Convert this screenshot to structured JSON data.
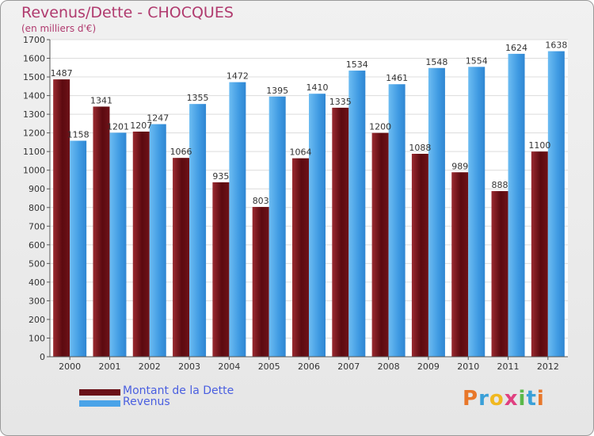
{
  "chart_data": {
    "type": "bar",
    "title": "Revenus/Dette - CHOCQUES",
    "subtitle": "(en milliers d'€)",
    "categories": [
      "2000",
      "2001",
      "2002",
      "2003",
      "2004",
      "2005",
      "2006",
      "2007",
      "2008",
      "2009",
      "2010",
      "2011",
      "2012"
    ],
    "series": [
      {
        "name": "Montant de la Dette",
        "values": [
          1487,
          1341,
          1207,
          1066,
          935,
          803,
          1064,
          1335,
          1200,
          1088,
          989,
          888,
          1100
        ],
        "color": "#7a1a20"
      },
      {
        "name": "Revenus",
        "values": [
          1158,
          1201,
          1247,
          1355,
          1472,
          1395,
          1410,
          1534,
          1461,
          1548,
          1554,
          1624,
          1638
        ],
        "color": "#4aa3e8"
      }
    ],
    "ylim": [
      0,
      1700
    ],
    "yticks": [
      0,
      100,
      200,
      300,
      400,
      500,
      600,
      700,
      800,
      900,
      1000,
      1100,
      1200,
      1300,
      1400,
      1500,
      1600,
      1700
    ],
    "grid": true,
    "legend_position": "bottom-left"
  },
  "logo": {
    "text": "Proxiti",
    "letter_colors": [
      "#e8772a",
      "#3aa0d8",
      "#f0b820",
      "#e04080",
      "#5ab84a",
      "#3aa0d8",
      "#e8772a"
    ]
  }
}
